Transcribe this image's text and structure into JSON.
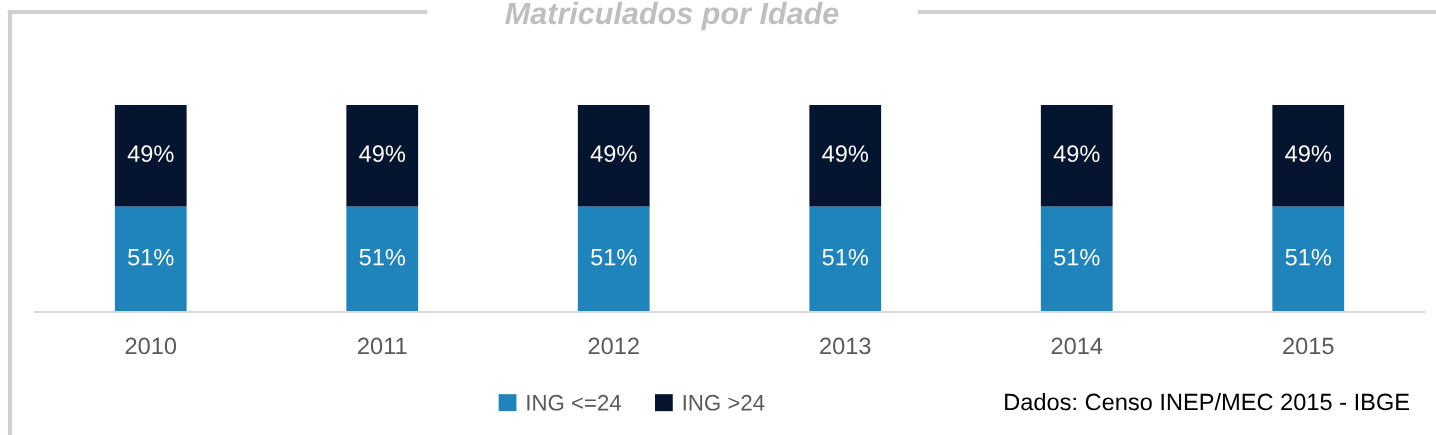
{
  "chart_data": {
    "type": "bar",
    "title": "Matriculados por Idade",
    "stacked": true,
    "data_labels": true,
    "legend": "bottom",
    "grid": false,
    "categories": [
      "2010",
      "2011",
      "2012",
      "2013",
      "2014",
      "2015"
    ],
    "series": [
      {
        "name": "ING <=24",
        "color": "#2084bc",
        "values": [
          51,
          51,
          51,
          51,
          51,
          51
        ],
        "value_labels": [
          "51%",
          "51%",
          "51%",
          "51%",
          "51%",
          "51%"
        ]
      },
      {
        "name": "ING >24",
        "color": "#06152f",
        "values": [
          49,
          49,
          49,
          49,
          49,
          49
        ],
        "value_labels": [
          "49%",
          "49%",
          "49%",
          "49%",
          "49%",
          "49%"
        ]
      }
    ],
    "annotations": [
      "Dados: Censo INEP/MEC 2015 - IBGE"
    ]
  }
}
